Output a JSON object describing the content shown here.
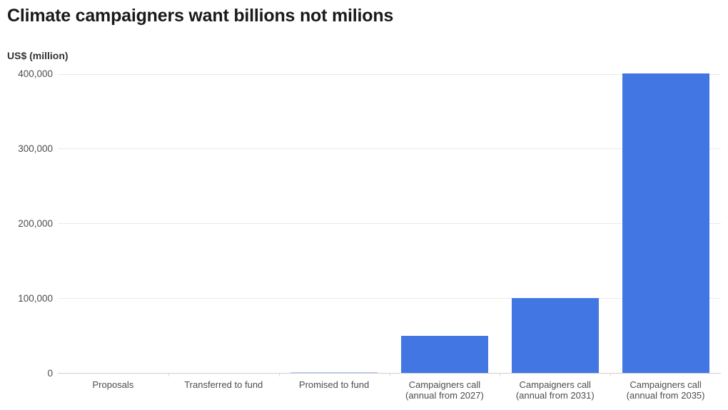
{
  "header": {
    "title": "Climate campaigners want billions not milions",
    "unit_label": "US$ (million)"
  },
  "chart_data": {
    "type": "bar",
    "title": "Climate campaigners want billions not milions",
    "xlabel": "",
    "ylabel": "US$ (million)",
    "ylim": [
      0,
      400000
    ],
    "grid": true,
    "legend": "none",
    "bar_color": "#4277e3",
    "categories": [
      "Proposals",
      "Transferred to fund",
      "Promised to fund",
      "Campaigners call\n(annual from 2027)",
      "Campaigners call\n(annual from 2031)",
      "Campaigners call\n(annual from 2035)"
    ],
    "values": [
      0,
      0,
      700,
      50000,
      100000,
      400000
    ],
    "yticks": [
      {
        "value": 0,
        "label": "0"
      },
      {
        "value": 100000,
        "label": "100,000"
      },
      {
        "value": 200000,
        "label": "200,000"
      },
      {
        "value": 300000,
        "label": "300,000"
      },
      {
        "value": 400000,
        "label": "400,000"
      }
    ]
  }
}
